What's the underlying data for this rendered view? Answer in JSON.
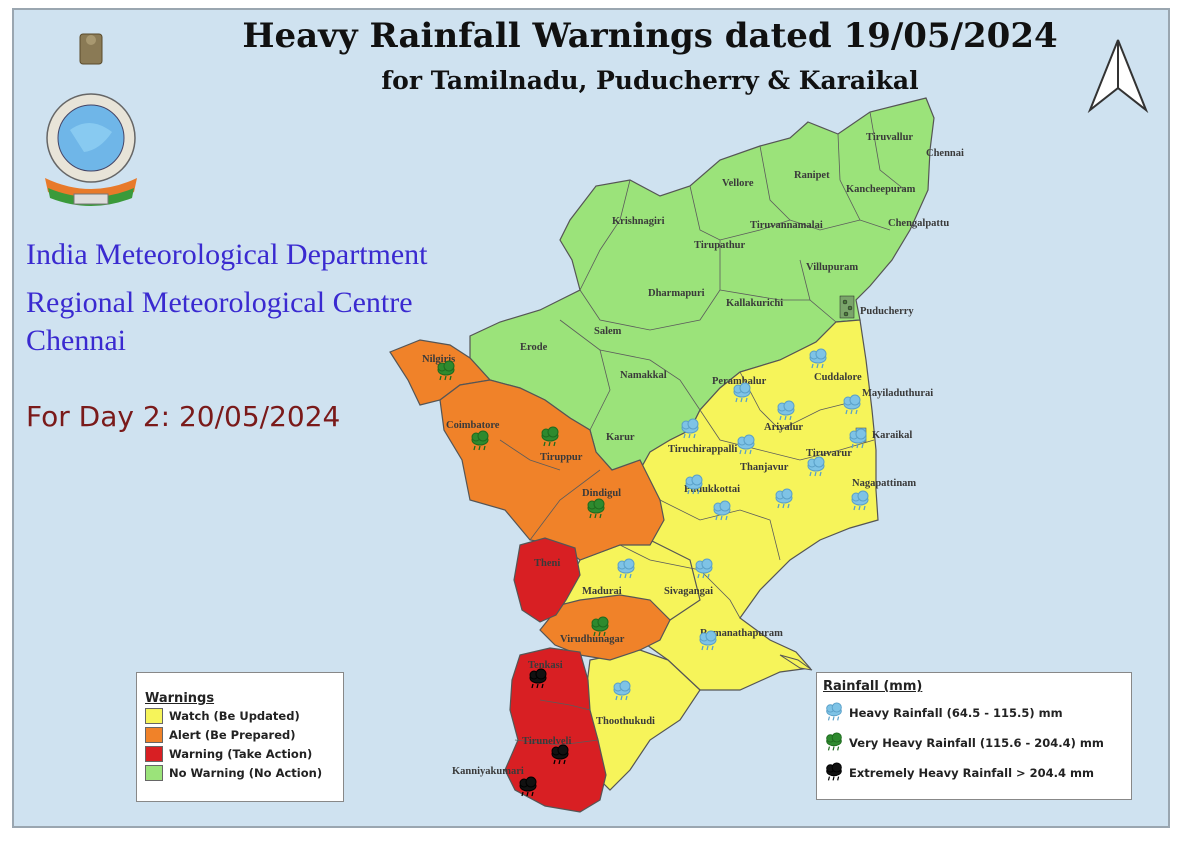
{
  "header": {
    "title": "Heavy Rainfall Warnings dated 19/05/2024",
    "subtitle": "for Tamilnadu, Puducherry & Karaikal"
  },
  "organization": {
    "line1": "India Meteorological Department",
    "line2": "Regional Meteorological Centre",
    "line3": "Chennai"
  },
  "forecast_day": "For Day 2: 20/05/2024",
  "colors": {
    "watch": "#f6f45a",
    "alert": "#f08229",
    "warning": "#d81f23",
    "no_warning": "#9be37a",
    "background": "#cfe2f0",
    "heavy_icon": "#7ec3e6",
    "very_heavy_icon": "#2e8a2e",
    "extreme_icon": "#111111"
  },
  "warnings_legend": {
    "title": "Warnings",
    "items": [
      {
        "label": "Watch (Be Updated)",
        "color": "#f6f45a"
      },
      {
        "label": "Alert (Be Prepared)",
        "color": "#f08229"
      },
      {
        "label": "Warning (Take Action)",
        "color": "#d81f23"
      },
      {
        "label": "No Warning (No Action)",
        "color": "#9be37a"
      }
    ]
  },
  "rainfall_legend": {
    "title": "Rainfall (mm)",
    "items": [
      {
        "label": "Heavy Rainfall (64.5 - 115.5) mm",
        "icon": "cloud-rain-light-blue-icon"
      },
      {
        "label": "Very Heavy Rainfall (115.6 - 204.4) mm",
        "icon": "cloud-rain-green-icon"
      },
      {
        "label": "Extremely Heavy Rainfall > 204.4 mm",
        "icon": "cloud-rain-black-icon"
      }
    ]
  },
  "districts": {
    "tiruvallur": "Tiruvallur",
    "chennai": "Chennai",
    "vellore": "Vellore",
    "ranipet": "Ranipet",
    "kancheepuram": "Kancheepuram",
    "chengalpattu": "Chengalpattu",
    "krishnagiri": "Krishnagiri",
    "tiruvannamalai": "Tiruvannamalai",
    "tirupathur": "Tirupathur",
    "villupuram": "Villupuram",
    "dharmapuri": "Dharmapuri",
    "kallakurichi": "Kallakurichi",
    "puducherry": "Puducherry",
    "salem": "Salem",
    "erode": "Erode",
    "nilgiris": "Nilgiris",
    "namakkal": "Namakkal",
    "perambalur": "Perambalur",
    "cuddalore": "Cuddalore",
    "mayiladuthurai": "Mayiladuthurai",
    "ariyalur": "Ariyalur",
    "karaikal": "Karaikal",
    "coimbatore": "Coimbatore",
    "tiruppur": "Tiruppur",
    "karur": "Karur",
    "tiruchirappalli": "Tiruchirappalli",
    "thanjavur": "Thanjavur",
    "tiruvarur": "Tiruvarur",
    "nagapattinam": "Nagapattinam",
    "dindigul": "Dindigul",
    "pudukkottai": "Pudukkottai",
    "theni": "Theni",
    "madurai": "Madurai",
    "sivagangai": "Sivagangai",
    "virudhunagar": "Virudhunagar",
    "ramanathapuram": "Ramanathapuram",
    "tenkasi": "Tenkasi",
    "thoothukudi": "Thoothukudi",
    "tirunelveli": "Tirunelveli",
    "kanniyakumari": "Kanniyakumari"
  }
}
